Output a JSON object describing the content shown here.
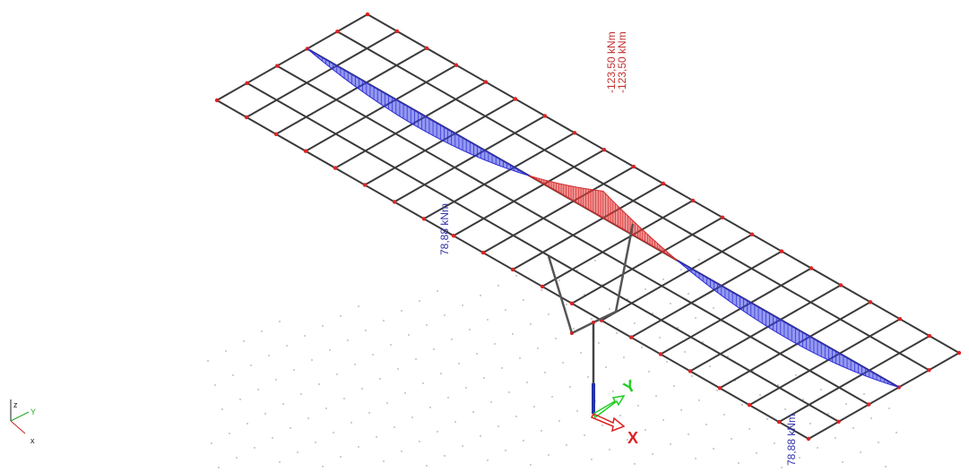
{
  "labels": {
    "peak_top": "-123,50 kNm",
    "peak_bottom": "-123,50 kNm",
    "left_moment": "78,88 kNm",
    "right_moment": "78,88 kNm"
  },
  "axes": {
    "small": {
      "z": "z",
      "y": "Y",
      "x": "x"
    },
    "origin": {
      "y": "Y",
      "x": "X"
    }
  }
}
